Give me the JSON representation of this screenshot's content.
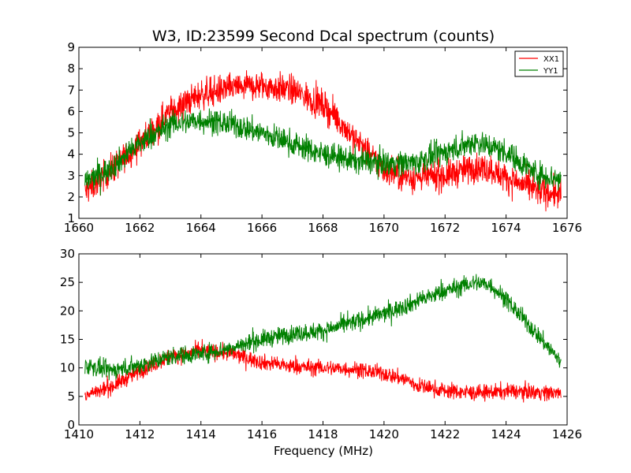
{
  "figure": {
    "title": "W3, ID:23599 Second Dcal spectrum (counts)",
    "xlabel": "Frequency (MHz)"
  },
  "legend": {
    "items": [
      {
        "label": "XX1",
        "color": "#ff0000"
      },
      {
        "label": "YY1",
        "color": "#008000"
      }
    ],
    "placement": "top-right"
  },
  "chart_data": [
    {
      "type": "line",
      "title": "W3, ID:23599 Second Dcal spectrum (counts)",
      "xlabel": "",
      "ylabel": "",
      "xlim": [
        1660,
        1676
      ],
      "ylim": [
        1,
        9
      ],
      "xticks": [
        1660,
        1662,
        1664,
        1666,
        1668,
        1670,
        1672,
        1674,
        1676
      ],
      "yticks": [
        1,
        2,
        3,
        4,
        5,
        6,
        7,
        8,
        9
      ],
      "grid": false,
      "legend": "top-right",
      "noise": [
        0.35,
        0.3
      ],
      "series": [
        {
          "name": "XX1",
          "color": "#ff0000",
          "x": [
            1660.2,
            1661.0,
            1662.0,
            1663.0,
            1664.0,
            1665.0,
            1666.0,
            1667.0,
            1668.0,
            1668.5,
            1669.0,
            1669.5,
            1670.0,
            1670.5,
            1671.0,
            1672.0,
            1673.0,
            1673.5,
            1674.0,
            1675.0,
            1675.8
          ],
          "y": [
            2.2,
            3.2,
            4.5,
            6.0,
            6.8,
            7.1,
            7.2,
            7.0,
            6.3,
            5.6,
            4.8,
            4.0,
            3.3,
            3.0,
            2.9,
            3.0,
            3.4,
            3.3,
            2.9,
            2.3,
            2.1
          ]
        },
        {
          "name": "YY1",
          "color": "#008000",
          "x": [
            1660.2,
            1661.0,
            1662.0,
            1663.0,
            1664.0,
            1665.0,
            1666.0,
            1667.0,
            1668.0,
            1669.0,
            1670.0,
            1671.0,
            1672.0,
            1673.0,
            1674.0,
            1675.0,
            1675.8
          ],
          "y": [
            2.7,
            3.3,
            4.5,
            5.4,
            5.6,
            5.4,
            5.0,
            4.5,
            4.0,
            3.7,
            3.6,
            3.6,
            4.1,
            4.6,
            4.1,
            3.1,
            2.8
          ]
        }
      ]
    },
    {
      "type": "line",
      "title": "",
      "xlabel": "Frequency (MHz)",
      "ylabel": "",
      "xlim": [
        1410,
        1426
      ],
      "ylim": [
        0,
        30
      ],
      "xticks": [
        1410,
        1412,
        1414,
        1416,
        1418,
        1420,
        1422,
        1424,
        1426
      ],
      "yticks": [
        0,
        5,
        10,
        15,
        20,
        25,
        30
      ],
      "grid": false,
      "noise": [
        0.7,
        0.8
      ],
      "series": [
        {
          "name": "XX1",
          "color": "#ff0000",
          "x": [
            1410.2,
            1411.0,
            1412.0,
            1413.0,
            1414.0,
            1415.0,
            1416.0,
            1417.0,
            1418.0,
            1419.0,
            1420.0,
            1420.8,
            1421.0,
            1422.0,
            1423.0,
            1424.0,
            1425.0,
            1425.8
          ],
          "y": [
            5.3,
            6.5,
            9.5,
            12.0,
            13.0,
            12.5,
            11.0,
            10.2,
            10.0,
            9.8,
            9.0,
            7.8,
            7.0,
            6.0,
            5.6,
            5.9,
            5.8,
            5.5
          ]
        },
        {
          "name": "YY1",
          "color": "#008000",
          "x": [
            1410.2,
            1411.0,
            1412.0,
            1413.0,
            1414.0,
            1415.0,
            1416.0,
            1417.0,
            1418.0,
            1419.0,
            1420.0,
            1421.0,
            1422.0,
            1423.0,
            1423.5,
            1424.0,
            1425.0,
            1425.8
          ],
          "y": [
            10.5,
            9.5,
            10.5,
            12.0,
            12.5,
            13.5,
            15.0,
            16.0,
            16.5,
            18.0,
            19.5,
            21.5,
            23.5,
            25.0,
            24.5,
            22.0,
            16.0,
            11.0
          ]
        }
      ]
    }
  ]
}
